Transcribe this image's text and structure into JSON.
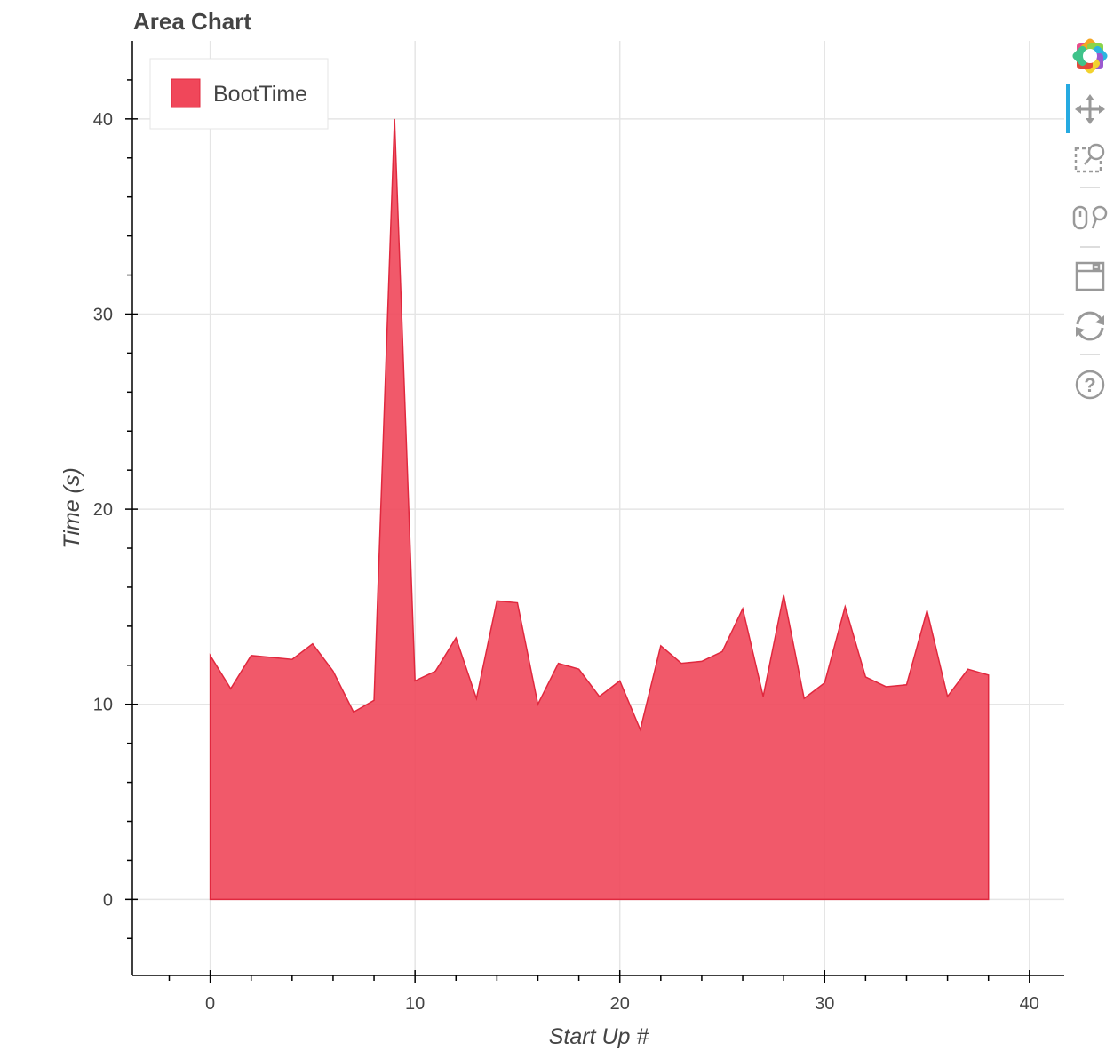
{
  "chart_data": {
    "type": "area",
    "title": "Area Chart",
    "xlabel": "Start Up #",
    "ylabel": "Time (s)",
    "xlim": [
      -3.8,
      41.7
    ],
    "ylim": [
      -3.9,
      44
    ],
    "x_ticks": [
      0,
      10,
      20,
      30,
      40
    ],
    "y_ticks": [
      0,
      10,
      20,
      30,
      40
    ],
    "x_tick_labels": [
      "0",
      "10",
      "20",
      "30",
      "40"
    ],
    "y_tick_labels": [
      "0",
      "10",
      "20",
      "30",
      "40"
    ],
    "grid": true,
    "legend": {
      "position": "top-left"
    },
    "series": [
      {
        "name": "BootTime",
        "color": "#f0475a",
        "x": [
          0,
          1,
          2,
          3,
          4,
          5,
          6,
          7,
          8,
          9,
          10,
          11,
          12,
          13,
          14,
          15,
          16,
          17,
          18,
          19,
          20,
          21,
          22,
          23,
          24,
          25,
          26,
          27,
          28,
          29,
          30,
          31,
          32,
          33,
          34,
          35,
          36,
          37,
          38
        ],
        "values": [
          12.5,
          10.8,
          12.5,
          12.4,
          12.3,
          13.1,
          11.7,
          9.6,
          10.2,
          40.0,
          11.2,
          11.7,
          13.4,
          10.3,
          15.3,
          15.2,
          10.0,
          12.1,
          11.8,
          10.4,
          11.2,
          8.7,
          13.0,
          12.1,
          12.2,
          12.7,
          14.9,
          10.4,
          15.6,
          10.3,
          11.1,
          15.0,
          11.4,
          10.9,
          11.0,
          14.8,
          10.4,
          11.8,
          11.5
        ]
      }
    ]
  },
  "toolbar": {
    "logo_icon": "bokeh-logo-icon",
    "tools": [
      "pan-icon",
      "box-zoom-icon",
      "wheel-zoom-icon",
      "save-icon",
      "reset-icon",
      "help-icon"
    ]
  }
}
